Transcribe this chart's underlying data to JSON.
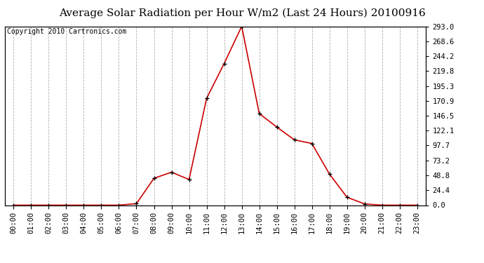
{
  "title": "Average Solar Radiation per Hour W/m2 (Last 24 Hours) 20100916",
  "copyright": "Copyright 2010 Cartronics.com",
  "hours": [
    "00:00",
    "01:00",
    "02:00",
    "03:00",
    "04:00",
    "05:00",
    "06:00",
    "07:00",
    "08:00",
    "09:00",
    "10:00",
    "11:00",
    "12:00",
    "13:00",
    "14:00",
    "15:00",
    "16:00",
    "17:00",
    "18:00",
    "19:00",
    "20:00",
    "21:00",
    "22:00",
    "23:00"
  ],
  "values": [
    0.0,
    0.0,
    0.0,
    0.0,
    0.0,
    0.0,
    0.0,
    2.5,
    44.0,
    54.0,
    42.0,
    175.0,
    232.0,
    293.0,
    150.0,
    128.0,
    107.0,
    101.0,
    51.0,
    13.0,
    2.0,
    0.0,
    0.0,
    0.0
  ],
  "y_ticks": [
    0.0,
    24.4,
    48.8,
    73.2,
    97.7,
    122.1,
    146.5,
    170.9,
    195.3,
    219.8,
    244.2,
    268.6,
    293.0
  ],
  "y_max": 293.0,
  "line_color": "#cc0000",
  "marker_color": "#000000",
  "background_color": "#ffffff",
  "grid_color": "#b0b0b0",
  "title_fontsize": 11,
  "copyright_fontsize": 7,
  "tick_fontsize": 7.5
}
